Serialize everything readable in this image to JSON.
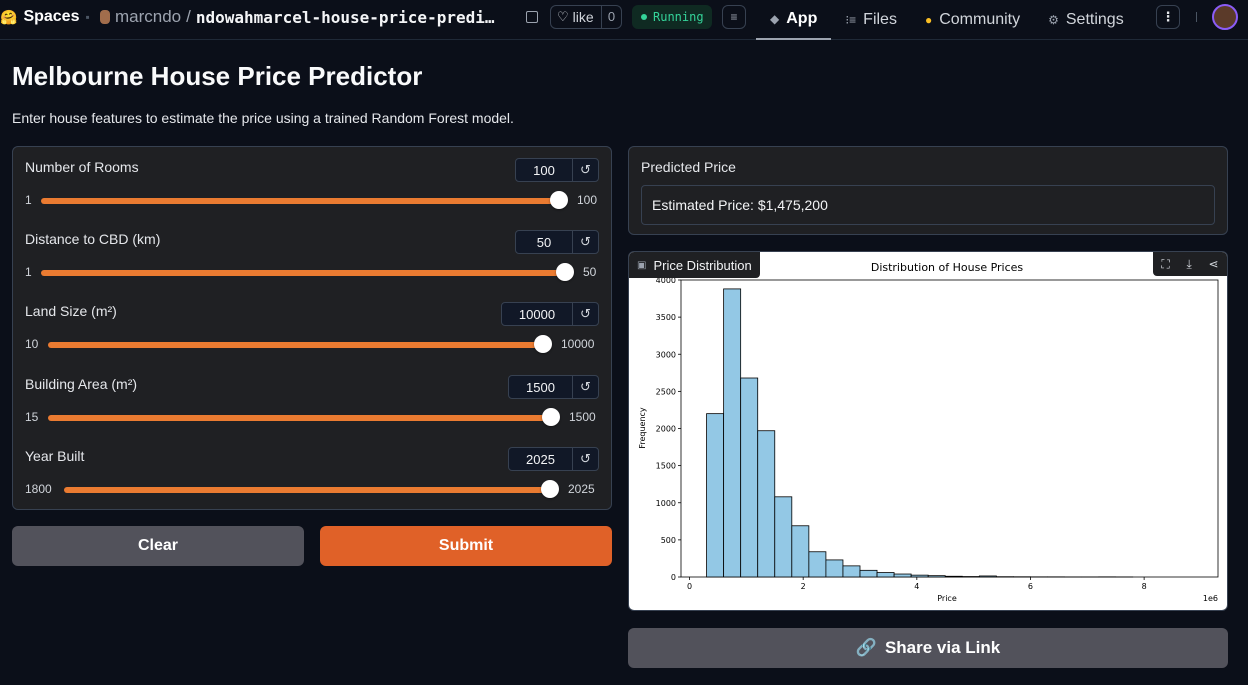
{
  "topbar": {
    "brand": "Spaces",
    "owner": "marcndo",
    "repo_name": "ndowahmarcel-house-price-predi…",
    "like_label": "like",
    "like_count": "0",
    "status": "Running",
    "tabs": [
      {
        "label": "App",
        "icon": "cube-icon"
      },
      {
        "label": "Files",
        "icon": "files-icon"
      },
      {
        "label": "Community",
        "icon": "community-icon"
      },
      {
        "label": "Settings",
        "icon": "gear-icon"
      }
    ]
  },
  "page": {
    "title": "Melbourne House Price Predictor",
    "description": "Enter house features to estimate the price using a trained Random Forest model."
  },
  "inputs": [
    {
      "label": "Number of Rooms",
      "value": "100",
      "min": "1",
      "max": "100"
    },
    {
      "label": "Distance to CBD (km)",
      "value": "50",
      "min": "1",
      "max": "50"
    },
    {
      "label": "Land Size (m²)",
      "value": "10000",
      "min": "10",
      "max": "10000"
    },
    {
      "label": "Building Area (m²)",
      "value": "1500",
      "min": "15",
      "max": "1500"
    },
    {
      "label": "Year Built",
      "value": "2025",
      "min": "1800",
      "max": "2025"
    }
  ],
  "buttons": {
    "clear": "Clear",
    "submit": "Submit",
    "share": "Share via Link"
  },
  "output": {
    "label": "Predicted Price",
    "value": "Estimated Price: $1,475,200"
  },
  "plot": {
    "label": "Price Distribution"
  },
  "colors": {
    "accent": "#ea7b31",
    "submit": "#e06128",
    "bar": "#93c8e5"
  },
  "chart_data": {
    "type": "bar",
    "title": "Distribution of House Prices",
    "xlabel": "Price",
    "ylabel": "Frequency",
    "x_scale_label": "1e6",
    "xlim": [
      -0.15,
      9.3
    ],
    "ylim": [
      0,
      4000
    ],
    "x_ticks": [
      "0",
      "2",
      "4",
      "6",
      "8"
    ],
    "y_ticks": [
      "0",
      "500",
      "1000",
      "1500",
      "2000",
      "2500",
      "3000",
      "3500",
      "4000"
    ],
    "bin_start": 0.3,
    "bin_width": 0.3,
    "values": [
      2200,
      3880,
      2680,
      1970,
      1080,
      690,
      340,
      230,
      150,
      90,
      60,
      40,
      25,
      18,
      10,
      6,
      14,
      4,
      3,
      2,
      2,
      1,
      1,
      2,
      1,
      0,
      0,
      0,
      0
    ]
  }
}
